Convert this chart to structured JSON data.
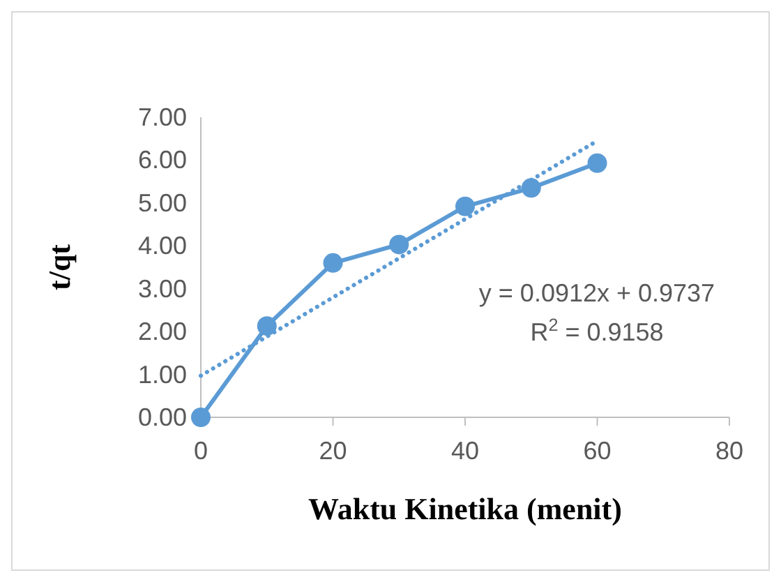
{
  "chart_data": {
    "type": "line",
    "xlabel": "Waktu Kinetika (menit)",
    "ylabel": "t/qt",
    "xlim": [
      0,
      80
    ],
    "xticks": [
      0,
      20,
      40,
      60,
      80
    ],
    "ylim": [
      0,
      7
    ],
    "yticks": [
      {
        "value": 0,
        "label": "0.00"
      },
      {
        "value": 1,
        "label": "1.00"
      },
      {
        "value": 2,
        "label": "2.00"
      },
      {
        "value": 3,
        "label": "3.00"
      },
      {
        "value": 4,
        "label": "4.00"
      },
      {
        "value": 5,
        "label": "5.00"
      },
      {
        "value": 6,
        "label": "6.00"
      },
      {
        "value": 7,
        "label": "7.00"
      }
    ],
    "grid": false,
    "series": [
      {
        "color": "#5b9bd5",
        "x": [
          0,
          10,
          20,
          30,
          40,
          50,
          60
        ],
        "values": [
          0,
          2.13,
          3.6,
          4.03,
          4.92,
          5.35,
          5.93
        ],
        "marker": "circle",
        "line_style": "solid"
      },
      {
        "color": "#5b9bd5",
        "x": [
          0,
          60
        ],
        "values": [
          0.97,
          6.45
        ],
        "marker": "none",
        "line_style": "dotted"
      }
    ],
    "annotations": [
      "y = 0.0912x + 0.9737",
      "R$^{2}$ = 0.9158"
    ]
  }
}
